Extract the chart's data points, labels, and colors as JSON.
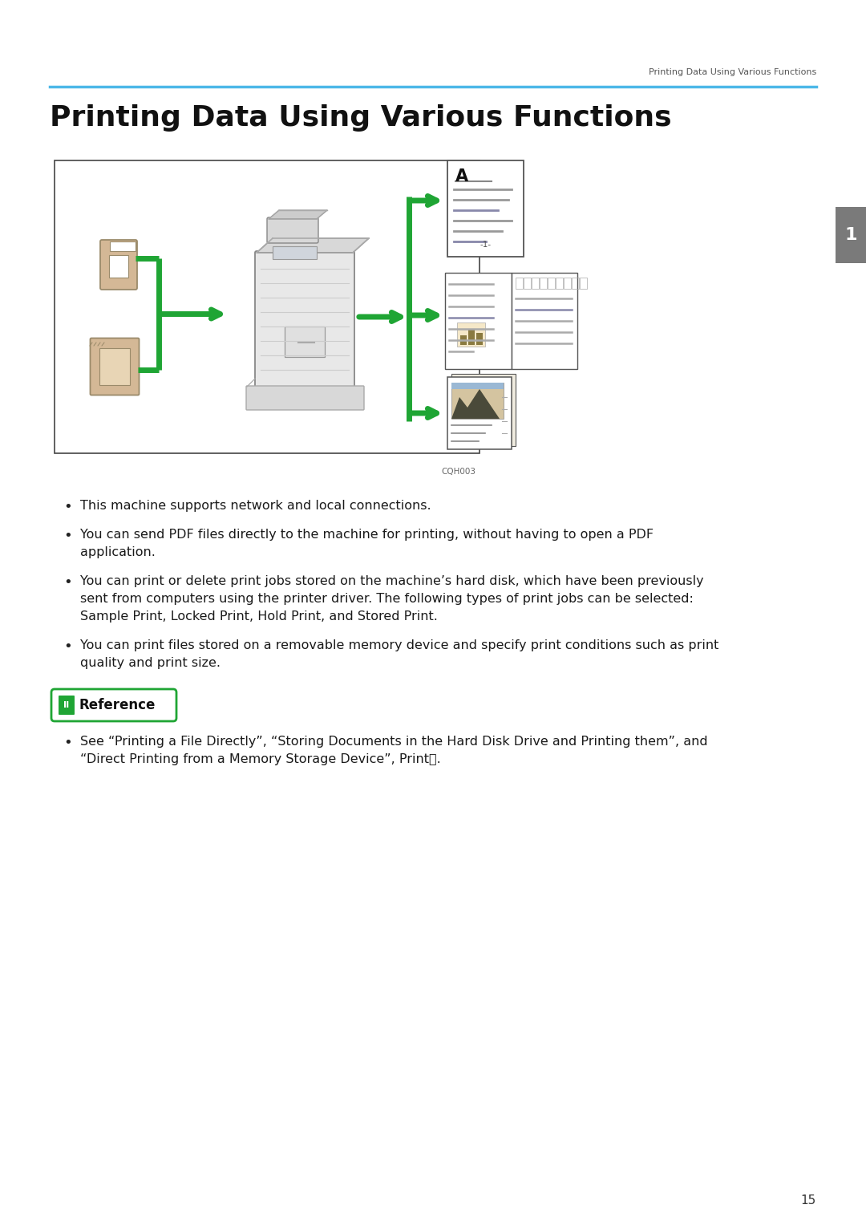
{
  "bg_color": "#ffffff",
  "header_line_color": "#4db8e8",
  "header_text": "Printing Data Using Various Functions",
  "header_text_small": "Printing Data Using Various Functions",
  "page_number": "15",
  "chapter_number": "1",
  "image_caption": "CQH003",
  "title_fontsize": 26,
  "body_fontsize": 11.5,
  "bullet_points": [
    "This machine supports network and local connections.",
    "You can send PDF files directly to the machine for printing, without having to open a PDF\napplication.",
    "You can print or delete print jobs stored on the machine’s hard disk, which have been previously\nsent from computers using the printer driver. The following types of print jobs can be selected:\nSample Print, Locked Print, Hold Print, and Stored Print.",
    "You can print files stored on a removable memory device and specify print conditions such as print\nquality and print size."
  ],
  "reference_label": "Reference",
  "reference_bullet": "See “Printing a File Directly”, “Storing Documents in the Hard Disk Drive and Printing them”, and\n“Direct Printing from a Memory Storage Device”, PrintⓅ.",
  "green_color": "#1fa534",
  "tan_color": "#d4b896",
  "ref_box_color": "#1fa534",
  "ref_box_border_color": "#1fa534"
}
